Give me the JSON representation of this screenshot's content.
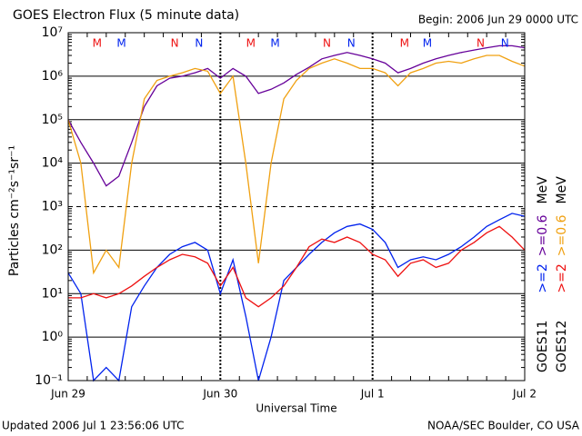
{
  "chart_data": {
    "type": "line",
    "title": "GOES Electron Flux (5 minute data)",
    "subtitle": "Begin: 2006 Jun 29 0000 UTC",
    "x_label": "Universal Time",
    "y_label": "Particles cm⁻²s⁻¹sr⁻¹",
    "footer_left": "Updated 2006 Jul  1 23:56:06 UTC",
    "footer_right": "NOAA/SEC Boulder, CO USA",
    "log_scale": true,
    "grid": true,
    "alert_threshold": 1000,
    "legend_unit": "MeV",
    "xlim": [
      0,
      3
    ],
    "xticks": [
      {
        "value": 0,
        "label": "Jun 29"
      },
      {
        "value": 1,
        "label": "Jun 30"
      },
      {
        "value": 2,
        "label": "Jul 1"
      },
      {
        "value": 3,
        "label": "Jul 2"
      }
    ],
    "ylim": [
      0.1,
      10000000
    ],
    "yticks": [
      {
        "value": 0.1,
        "label": "10⁻¹"
      },
      {
        "value": 1,
        "label": "10⁰"
      },
      {
        "value": 10,
        "label": "10¹"
      },
      {
        "value": 100,
        "label": "10²"
      },
      {
        "value": 1000,
        "label": "10³"
      },
      {
        "value": 10000,
        "label": "10⁴"
      },
      {
        "value": 100000,
        "label": "10⁵"
      },
      {
        "value": 1000000,
        "label": "10⁶"
      },
      {
        "value": 10000000,
        "label": "10⁷"
      }
    ],
    "x": [
      0,
      0.083,
      0.167,
      0.25,
      0.333,
      0.417,
      0.5,
      0.583,
      0.667,
      0.75,
      0.833,
      0.917,
      1,
      1.083,
      1.167,
      1.25,
      1.333,
      1.417,
      1.5,
      1.583,
      1.667,
      1.75,
      1.833,
      1.917,
      2,
      2.083,
      2.167,
      2.25,
      2.333,
      2.417,
      2.5,
      2.583,
      2.667,
      2.75,
      2.833,
      2.917,
      3
    ],
    "legend_groups": [
      {
        "name": "GOES11",
        "series": [
          0,
          1
        ]
      },
      {
        "name": "GOES12",
        "series": [
          2,
          3
        ]
      }
    ],
    "series": [
      {
        "name": ">=2",
        "color": "#0022ee",
        "values": [
          30,
          10,
          0.1,
          0.2,
          0.1,
          5,
          15,
          40,
          80,
          120,
          150,
          100,
          10,
          60,
          3,
          0.1,
          1,
          20,
          40,
          80,
          150,
          250,
          350,
          400,
          300,
          150,
          40,
          60,
          70,
          60,
          80,
          120,
          200,
          350,
          500,
          700,
          600
        ]
      },
      {
        "name": ">=0.6",
        "color": "#660099",
        "values": [
          100000,
          30000,
          10000,
          3000,
          5000,
          30000,
          200000,
          600000,
          900000,
          1000000,
          1200000,
          1500000,
          900000,
          1500000,
          1000000,
          400000,
          500000,
          700000,
          1100000,
          1600000,
          2500000,
          3000000,
          3500000,
          3000000,
          2500000,
          2000000,
          1200000,
          1500000,
          2000000,
          2500000,
          3000000,
          3500000,
          4000000,
          4500000,
          5000000,
          5000000,
          4500000
        ]
      },
      {
        "name": ">=2",
        "color": "#ee1111",
        "values": [
          8,
          8,
          10,
          8,
          10,
          15,
          25,
          40,
          60,
          80,
          70,
          50,
          15,
          40,
          8,
          5,
          8,
          15,
          40,
          120,
          180,
          150,
          200,
          150,
          80,
          60,
          25,
          50,
          60,
          40,
          50,
          100,
          150,
          250,
          350,
          200,
          100
        ]
      },
      {
        "name": ">=0.6",
        "color": "#f0a010",
        "values": [
          100000,
          10000,
          30,
          100,
          40,
          10000,
          300000,
          800000,
          1000000,
          1200000,
          1500000,
          1300000,
          400000,
          1000000,
          10000,
          50,
          10000,
          300000,
          800000,
          1500000,
          2000000,
          2500000,
          2000000,
          1500000,
          1500000,
          1200000,
          600000,
          1200000,
          1500000,
          2000000,
          2200000,
          2000000,
          2500000,
          3000000,
          3000000,
          2200000,
          1700000
        ]
      }
    ],
    "annotations": [
      {
        "label": "M",
        "x": 0.19,
        "color": "#ee1111"
      },
      {
        "label": "M",
        "x": 0.35,
        "color": "#0022ee"
      },
      {
        "label": "N",
        "x": 0.7,
        "color": "#ee1111"
      },
      {
        "label": "N",
        "x": 0.86,
        "color": "#0022ee"
      },
      {
        "label": "M",
        "x": 1.2,
        "color": "#ee1111"
      },
      {
        "label": "M",
        "x": 1.36,
        "color": "#0022ee"
      },
      {
        "label": "N",
        "x": 1.7,
        "color": "#ee1111"
      },
      {
        "label": "N",
        "x": 1.86,
        "color": "#0022ee"
      },
      {
        "label": "M",
        "x": 2.21,
        "color": "#ee1111"
      },
      {
        "label": "M",
        "x": 2.36,
        "color": "#0022ee"
      },
      {
        "label": "N",
        "x": 2.71,
        "color": "#ee1111"
      },
      {
        "label": "N",
        "x": 2.87,
        "color": "#0022ee"
      }
    ]
  }
}
